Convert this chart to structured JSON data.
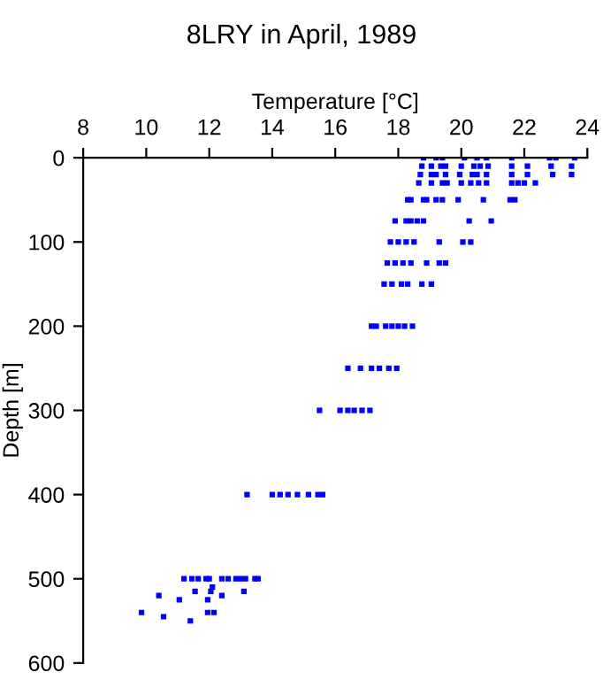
{
  "chart_data": {
    "type": "scatter",
    "title": "8LRY in April, 1989",
    "xlabel": "Temperature [°C]",
    "ylabel": "Depth [m]",
    "xlim": [
      8,
      24
    ],
    "xticks": [
      8,
      10,
      12,
      14,
      16,
      18,
      20,
      22,
      24
    ],
    "ylim": [
      600,
      0
    ],
    "yticks": [
      0,
      100,
      200,
      300,
      400,
      500,
      600
    ],
    "grid": false,
    "marker": "square",
    "series": [
      {
        "color": "#0000ff",
        "x": [
          18.8,
          19.2,
          19.4,
          20.1,
          20.5,
          20.8,
          21.6,
          22.8,
          23.0,
          23.6,
          18.75,
          19.05,
          19.35,
          19.5,
          20.0,
          20.4,
          20.6,
          20.85,
          21.6,
          22.1,
          22.85,
          23.5,
          18.7,
          19.05,
          19.2,
          19.5,
          19.95,
          20.35,
          20.5,
          20.8,
          21.6,
          22.1,
          22.9,
          23.5,
          18.65,
          19.05,
          19.4,
          19.55,
          20.0,
          20.3,
          20.55,
          20.8,
          21.6,
          21.8,
          22.0,
          22.35,
          18.3,
          18.4,
          18.8,
          18.9,
          19.2,
          19.4,
          19.9,
          20.7,
          21.55,
          21.7,
          17.9,
          18.25,
          18.4,
          18.6,
          18.8,
          20.25,
          20.95,
          17.75,
          18.0,
          18.25,
          18.5,
          19.3,
          20.05,
          20.3,
          17.65,
          17.9,
          18.15,
          18.4,
          18.9,
          19.3,
          19.5,
          17.55,
          17.8,
          18.1,
          18.3,
          18.75,
          19.05,
          17.15,
          17.3,
          17.6,
          17.8,
          18.0,
          18.2,
          18.45,
          16.4,
          16.8,
          17.15,
          17.4,
          17.7,
          17.95,
          15.5,
          16.15,
          16.4,
          16.6,
          16.85,
          17.1,
          13.2,
          14.0,
          14.25,
          14.5,
          14.8,
          15.15,
          15.45,
          15.6,
          11.2,
          11.45,
          11.65,
          11.9,
          12.0,
          12.4,
          12.6,
          12.85,
          13.0,
          13.15,
          13.45,
          13.55,
          11.55,
          12.05,
          12.1,
          13.1,
          10.4,
          12.4,
          11.05,
          11.95,
          9.85,
          10.55,
          11.95,
          12.15,
          11.4
        ],
        "values": [
          0,
          0,
          0,
          0,
          0,
          0,
          0,
          0,
          0,
          0,
          10,
          10,
          10,
          10,
          10,
          10,
          10,
          10,
          10,
          10,
          10,
          10,
          20,
          20,
          20,
          20,
          20,
          20,
          20,
          20,
          20,
          20,
          20,
          20,
          30,
          30,
          30,
          30,
          30,
          30,
          30,
          30,
          30,
          30,
          30,
          30,
          50,
          50,
          50,
          50,
          50,
          50,
          50,
          50,
          50,
          50,
          75,
          75,
          75,
          75,
          75,
          75,
          75,
          100,
          100,
          100,
          100,
          100,
          100,
          100,
          125,
          125,
          125,
          125,
          125,
          125,
          125,
          150,
          150,
          150,
          150,
          150,
          150,
          200,
          200,
          200,
          200,
          200,
          200,
          200,
          250,
          250,
          250,
          250,
          250,
          250,
          300,
          300,
          300,
          300,
          300,
          300,
          400,
          400,
          400,
          400,
          400,
          400,
          400,
          400,
          500,
          500,
          500,
          500,
          500,
          500,
          500,
          500,
          500,
          500,
          500,
          500,
          515,
          515,
          510,
          515,
          520,
          520,
          525,
          525,
          540,
          545,
          540,
          540,
          550
        ]
      }
    ]
  }
}
